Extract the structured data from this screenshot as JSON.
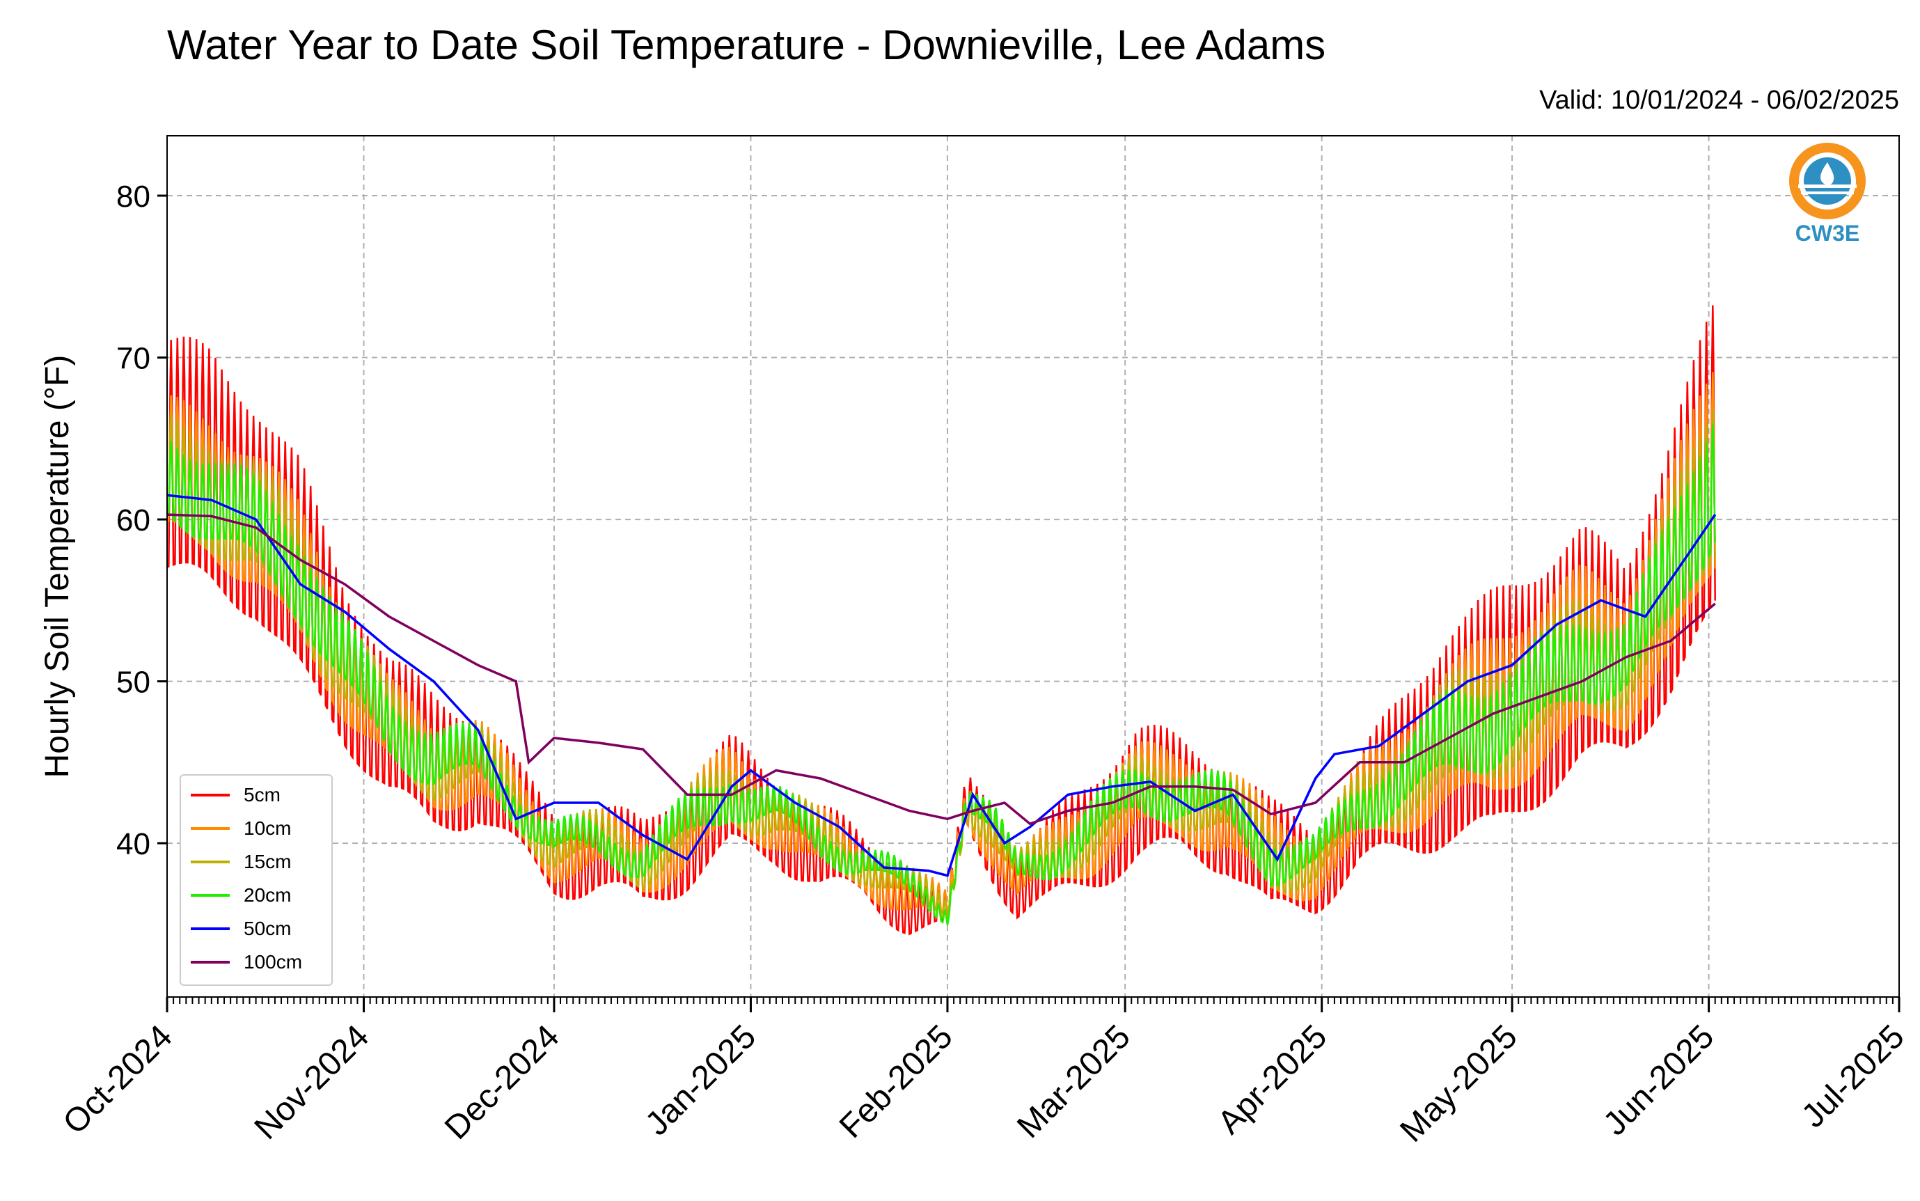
{
  "title": "Water Year to Date Soil Temperature - Downieville, Lee Adams",
  "valid_label": "Valid: 10/01/2024 - 06/02/2025",
  "logo": {
    "text": "CW3E",
    "colors": [
      "#f7941d",
      "#2d8fc2"
    ]
  },
  "chart_data": {
    "type": "line",
    "title": "Water Year to Date Soil Temperature - Downieville, Lee Adams",
    "ylabel": "Hourly Soil Temperature (°F)",
    "xlabel": "",
    "ylim": [
      30.5,
      83.7
    ],
    "yticks": [
      40,
      50,
      60,
      70,
      80
    ],
    "x_start": "2024-10-01",
    "x_end": "2025-07-01",
    "xticks": [
      "Oct-2024",
      "Nov-2024",
      "Dec-2024",
      "Jan-2025",
      "Feb-2025",
      "Mar-2025",
      "Apr-2025",
      "May-2025",
      "Jun-2025",
      "Jul-2025"
    ],
    "xtick_dates": [
      "2024-10-01",
      "2024-11-01",
      "2024-12-01",
      "2025-01-01",
      "2025-02-01",
      "2025-03-01",
      "2025-04-01",
      "2025-05-01",
      "2025-06-01",
      "2025-07-01"
    ],
    "grid": true,
    "legend_position": "lower-left",
    "series_smoothed": [
      {
        "name": "5cm",
        "color": "#ff0000",
        "x": [
          "2024-10-01",
          "2024-10-08",
          "2024-10-15",
          "2024-10-22",
          "2024-10-29",
          "2024-11-05",
          "2024-11-12",
          "2024-11-19",
          "2024-11-26",
          "2024-12-01",
          "2024-12-08",
          "2024-12-15",
          "2024-12-22",
          "2024-12-29",
          "2025-01-05",
          "2025-01-12",
          "2025-01-19",
          "2025-01-26",
          "2025-02-01",
          "2025-02-04",
          "2025-02-08",
          "2025-02-12",
          "2025-02-17",
          "2025-02-24",
          "2025-03-03",
          "2025-03-10",
          "2025-03-17",
          "2025-03-24",
          "2025-03-31",
          "2025-04-07",
          "2025-04-14",
          "2025-04-21",
          "2025-04-28",
          "2025-05-05",
          "2025-05-12",
          "2025-05-19",
          "2025-05-26",
          "2025-06-02"
        ],
        "mean": [
          62,
          61,
          59,
          55,
          50,
          46,
          44,
          44,
          41,
          39,
          39,
          38,
          40,
          42,
          41,
          39,
          38,
          36,
          35,
          42,
          40,
          37,
          38,
          40,
          42,
          42,
          41,
          38,
          38,
          41,
          43,
          45,
          46,
          48,
          50,
          50,
          55,
          61
        ],
        "amp": [
          9,
          9,
          8,
          8,
          6,
          5,
          5,
          4,
          3,
          3,
          3,
          3,
          4,
          4,
          3,
          3,
          2,
          2,
          1,
          2,
          3,
          2,
          3,
          4,
          5,
          4,
          4,
          4,
          3,
          4,
          6,
          8,
          9,
          9,
          9,
          7,
          10,
          12
        ]
      },
      {
        "name": "10cm",
        "color": "#ff8c00",
        "x": [
          "2024-10-01",
          "2024-10-08",
          "2024-10-15",
          "2024-10-22",
          "2024-10-29",
          "2024-11-05",
          "2024-11-12",
          "2024-11-19",
          "2024-11-26",
          "2024-12-01",
          "2024-12-08",
          "2024-12-15",
          "2024-12-22",
          "2024-12-29",
          "2025-01-05",
          "2025-01-12",
          "2025-01-19",
          "2025-01-26",
          "2025-02-01",
          "2025-02-04",
          "2025-02-08",
          "2025-02-12",
          "2025-02-17",
          "2025-02-24",
          "2025-03-03",
          "2025-03-10",
          "2025-03-17",
          "2025-03-24",
          "2025-03-31",
          "2025-04-07",
          "2025-04-14",
          "2025-04-21",
          "2025-04-28",
          "2025-05-05",
          "2025-05-12",
          "2025-05-19",
          "2025-05-26",
          "2025-06-02"
        ],
        "mean": [
          62,
          61,
          59,
          55.5,
          50.5,
          46.5,
          44.5,
          44.5,
          41.5,
          39.5,
          39.5,
          38.5,
          40.5,
          42.5,
          41.5,
          39.5,
          38.5,
          36.5,
          35.5,
          42.5,
          40.5,
          37.5,
          38.5,
          40.5,
          42.5,
          42.5,
          41.5,
          38.5,
          38.5,
          41.5,
          43.5,
          45.5,
          46.5,
          48.5,
          50.5,
          50.5,
          55.5,
          61.5
        ],
        "amp": [
          5,
          5,
          5,
          5,
          4,
          3,
          3,
          3,
          2,
          2,
          2,
          2,
          3,
          3,
          2,
          2,
          1.5,
          1.5,
          1,
          1.5,
          2,
          1.5,
          2,
          3,
          3,
          3,
          3,
          3,
          2,
          3,
          4,
          5,
          6,
          6,
          6,
          5,
          7,
          8
        ]
      },
      {
        "name": "15cm",
        "color": "#bdb000",
        "x": [
          "2024-10-01",
          "2024-10-08",
          "2024-10-15",
          "2024-10-22",
          "2024-10-29",
          "2024-11-05",
          "2024-11-12",
          "2024-11-19",
          "2024-11-26",
          "2024-12-01",
          "2024-12-08",
          "2024-12-15",
          "2024-12-22",
          "2024-12-29",
          "2025-01-05",
          "2025-01-12",
          "2025-01-19",
          "2025-01-26",
          "2025-02-01",
          "2025-02-04",
          "2025-02-08",
          "2025-02-12",
          "2025-02-17",
          "2025-02-24",
          "2025-03-03",
          "2025-03-10",
          "2025-03-17",
          "2025-03-24",
          "2025-03-31",
          "2025-04-07",
          "2025-04-14",
          "2025-04-21",
          "2025-04-28",
          "2025-05-05",
          "2025-05-12",
          "2025-05-19",
          "2025-05-26",
          "2025-06-02"
        ],
        "mean": [
          62,
          61,
          59,
          55.8,
          50.8,
          46.8,
          44.8,
          44.8,
          41.8,
          39.8,
          39.8,
          38.8,
          40.8,
          42.8,
          41.8,
          39.8,
          38.8,
          36.8,
          35.8,
          42.8,
          40.8,
          37.8,
          38.8,
          40.8,
          42.8,
          42.8,
          41.8,
          38.8,
          38.8,
          41.8,
          43.8,
          45.8,
          46.8,
          48.8,
          50.8,
          50.8,
          55.8,
          61.8
        ],
        "amp": [
          4,
          4,
          4,
          4,
          3,
          2.5,
          2.5,
          2,
          1.5,
          1.5,
          1.5,
          1.5,
          2,
          2,
          1.5,
          1.5,
          1,
          1,
          0.8,
          1,
          1.5,
          1,
          1.5,
          2,
          2,
          2,
          2,
          2,
          1.5,
          2,
          3,
          4,
          4,
          4,
          4,
          3,
          5,
          6
        ]
      },
      {
        "name": "20cm",
        "color": "#22ee00",
        "x": [
          "2024-10-01",
          "2024-10-08",
          "2024-10-15",
          "2024-10-22",
          "2024-10-29",
          "2024-11-05",
          "2024-11-12",
          "2024-11-19",
          "2024-11-26",
          "2024-12-01",
          "2024-12-08",
          "2024-12-15",
          "2024-12-22",
          "2024-12-29",
          "2025-01-05",
          "2025-01-12",
          "2025-01-19",
          "2025-01-26",
          "2025-02-01",
          "2025-02-04",
          "2025-02-08",
          "2025-02-12",
          "2025-02-17",
          "2025-02-24",
          "2025-03-03",
          "2025-03-10",
          "2025-03-17",
          "2025-03-24",
          "2025-03-31",
          "2025-04-07",
          "2025-04-14",
          "2025-04-21",
          "2025-04-28",
          "2025-05-05",
          "2025-05-12",
          "2025-05-19",
          "2025-05-26",
          "2025-06-02"
        ],
        "mean": [
          62,
          61,
          59,
          56,
          51,
          47,
          45,
          45,
          42,
          40,
          40,
          39,
          41,
          43,
          42,
          40,
          39,
          37,
          36,
          43,
          41,
          38,
          39,
          41,
          43,
          43,
          42,
          39,
          39,
          42,
          44,
          46,
          47,
          49,
          51,
          51,
          56,
          62
        ],
        "amp": [
          3,
          3,
          3,
          3,
          2.5,
          2,
          2,
          1.5,
          1,
          1,
          1,
          1,
          1.5,
          1.5,
          1,
          1,
          0.8,
          0.8,
          0.5,
          0.8,
          1,
          0.8,
          1,
          1.5,
          1.5,
          1.5,
          1.5,
          1.5,
          1,
          1.5,
          2,
          3,
          3,
          3,
          3,
          2.5,
          4,
          5
        ]
      }
    ],
    "series": [
      {
        "name": "50cm",
        "color": "#0000ff",
        "x": [
          "2024-10-01",
          "2024-10-08",
          "2024-10-15",
          "2024-10-22",
          "2024-10-29",
          "2024-11-05",
          "2024-11-12",
          "2024-11-19",
          "2024-11-25",
          "2024-12-01",
          "2024-12-08",
          "2024-12-15",
          "2024-12-22",
          "2024-12-29",
          "2025-01-01",
          "2025-01-08",
          "2025-01-15",
          "2025-01-22",
          "2025-01-29",
          "2025-02-01",
          "2025-02-05",
          "2025-02-10",
          "2025-02-14",
          "2025-02-20",
          "2025-02-27",
          "2025-03-05",
          "2025-03-12",
          "2025-03-18",
          "2025-03-25",
          "2025-03-31",
          "2025-04-03",
          "2025-04-10",
          "2025-04-17",
          "2025-04-24",
          "2025-05-01",
          "2025-05-08",
          "2025-05-15",
          "2025-05-22",
          "2025-05-29",
          "2025-06-02"
        ],
        "values": [
          61.5,
          61.2,
          60,
          56,
          54.3,
          52,
          50,
          47,
          41.5,
          42.5,
          42.5,
          40.5,
          39,
          43.5,
          44.5,
          42.5,
          41,
          38.5,
          38.3,
          38,
          43,
          40,
          41,
          43,
          43.5,
          43.8,
          42,
          43,
          39,
          44,
          45.5,
          46,
          48,
          50,
          51,
          53.5,
          55,
          54,
          58,
          60.3
        ]
      },
      {
        "name": "100cm",
        "color": "#800060",
        "x": [
          "2024-10-01",
          "2024-10-08",
          "2024-10-15",
          "2024-10-22",
          "2024-10-29",
          "2024-11-05",
          "2024-11-12",
          "2024-11-19",
          "2024-11-25",
          "2024-11-27",
          "2024-12-01",
          "2024-12-08",
          "2024-12-15",
          "2024-12-22",
          "2024-12-29",
          "2025-01-05",
          "2025-01-12",
          "2025-01-19",
          "2025-01-26",
          "2025-02-01",
          "2025-02-05",
          "2025-02-10",
          "2025-02-14",
          "2025-02-20",
          "2025-02-27",
          "2025-03-05",
          "2025-03-12",
          "2025-03-18",
          "2025-03-24",
          "2025-03-31",
          "2025-04-07",
          "2025-04-14",
          "2025-04-21",
          "2025-04-28",
          "2025-05-05",
          "2025-05-12",
          "2025-05-19",
          "2025-05-26",
          "2025-06-02"
        ],
        "values": [
          60.3,
          60.2,
          59.5,
          57.5,
          56,
          54,
          52.5,
          51,
          50,
          45,
          46.5,
          46.2,
          45.8,
          43,
          43,
          44.5,
          44,
          43,
          42,
          41.5,
          42,
          42.5,
          41.2,
          42,
          42.5,
          43.5,
          43.5,
          43.3,
          41.8,
          42.5,
          45,
          45,
          46.5,
          48,
          49,
          50,
          51.5,
          52.5,
          54.8
        ]
      }
    ],
    "legend": [
      {
        "name": "5cm",
        "color": "#ff0000"
      },
      {
        "name": "10cm",
        "color": "#ff8c00"
      },
      {
        "name": "15cm",
        "color": "#bdb000"
      },
      {
        "name": "20cm",
        "color": "#22ee00"
      },
      {
        "name": "50cm",
        "color": "#0000ff"
      },
      {
        "name": "100cm",
        "color": "#800060"
      }
    ]
  }
}
